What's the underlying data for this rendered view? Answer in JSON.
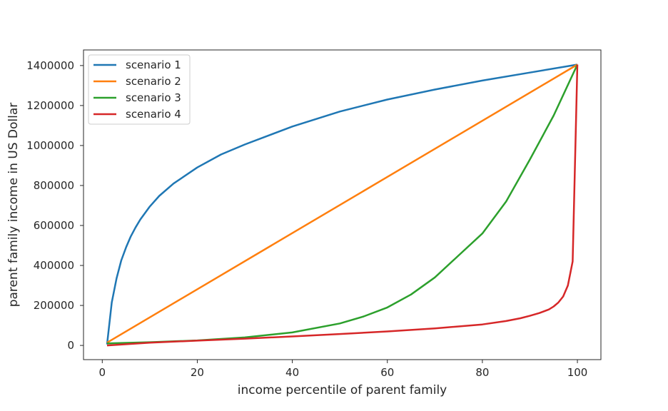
{
  "chart_data": {
    "type": "line",
    "title": "",
    "xlabel": "income percentile of parent family",
    "ylabel": "parent family income in US Dollar",
    "xlim": [
      -3.95,
      104.95
    ],
    "ylim": [
      -71000,
      1478000
    ],
    "xticks": [
      0,
      20,
      40,
      60,
      80,
      100
    ],
    "yticks": [
      0,
      200000,
      400000,
      600000,
      800000,
      1000000,
      1200000,
      1400000
    ],
    "grid": false,
    "legend_position": "top-left",
    "series": [
      {
        "name": "scenario 1",
        "color": "#1f77b4",
        "x": [
          1,
          2,
          3,
          4,
          5,
          6,
          7,
          8,
          10,
          12,
          15,
          20,
          25,
          30,
          40,
          50,
          60,
          70,
          80,
          90,
          100
        ],
        "y": [
          5000,
          215000,
          335000,
          425000,
          490000,
          545000,
          590000,
          630000,
          695000,
          748000,
          810000,
          890000,
          955000,
          1005000,
          1095000,
          1170000,
          1230000,
          1280000,
          1325000,
          1365000,
          1405000
        ]
      },
      {
        "name": "scenario 2",
        "color": "#ff7f0e",
        "x": [
          1,
          100
        ],
        "y": [
          14050,
          1405000
        ]
      },
      {
        "name": "scenario 3",
        "color": "#2ca02c",
        "x": [
          1,
          10,
          20,
          30,
          40,
          50,
          55,
          60,
          65,
          70,
          75,
          80,
          85,
          90,
          95,
          100
        ],
        "y": [
          10000,
          16000,
          25000,
          40000,
          65000,
          110000,
          145000,
          190000,
          255000,
          340000,
          450000,
          560000,
          720000,
          930000,
          1150000,
          1405000
        ]
      },
      {
        "name": "scenario 4",
        "color": "#d62728",
        "x": [
          1,
          10,
          20,
          30,
          40,
          50,
          60,
          70,
          80,
          85,
          88,
          90,
          92,
          94,
          95,
          96,
          97,
          98,
          99,
          100
        ],
        "y": [
          0,
          14000,
          24000,
          34000,
          45000,
          57000,
          70000,
          85000,
          105000,
          122000,
          136000,
          148000,
          162000,
          180000,
          195000,
          215000,
          245000,
          300000,
          420000,
          1405000
        ]
      }
    ]
  }
}
